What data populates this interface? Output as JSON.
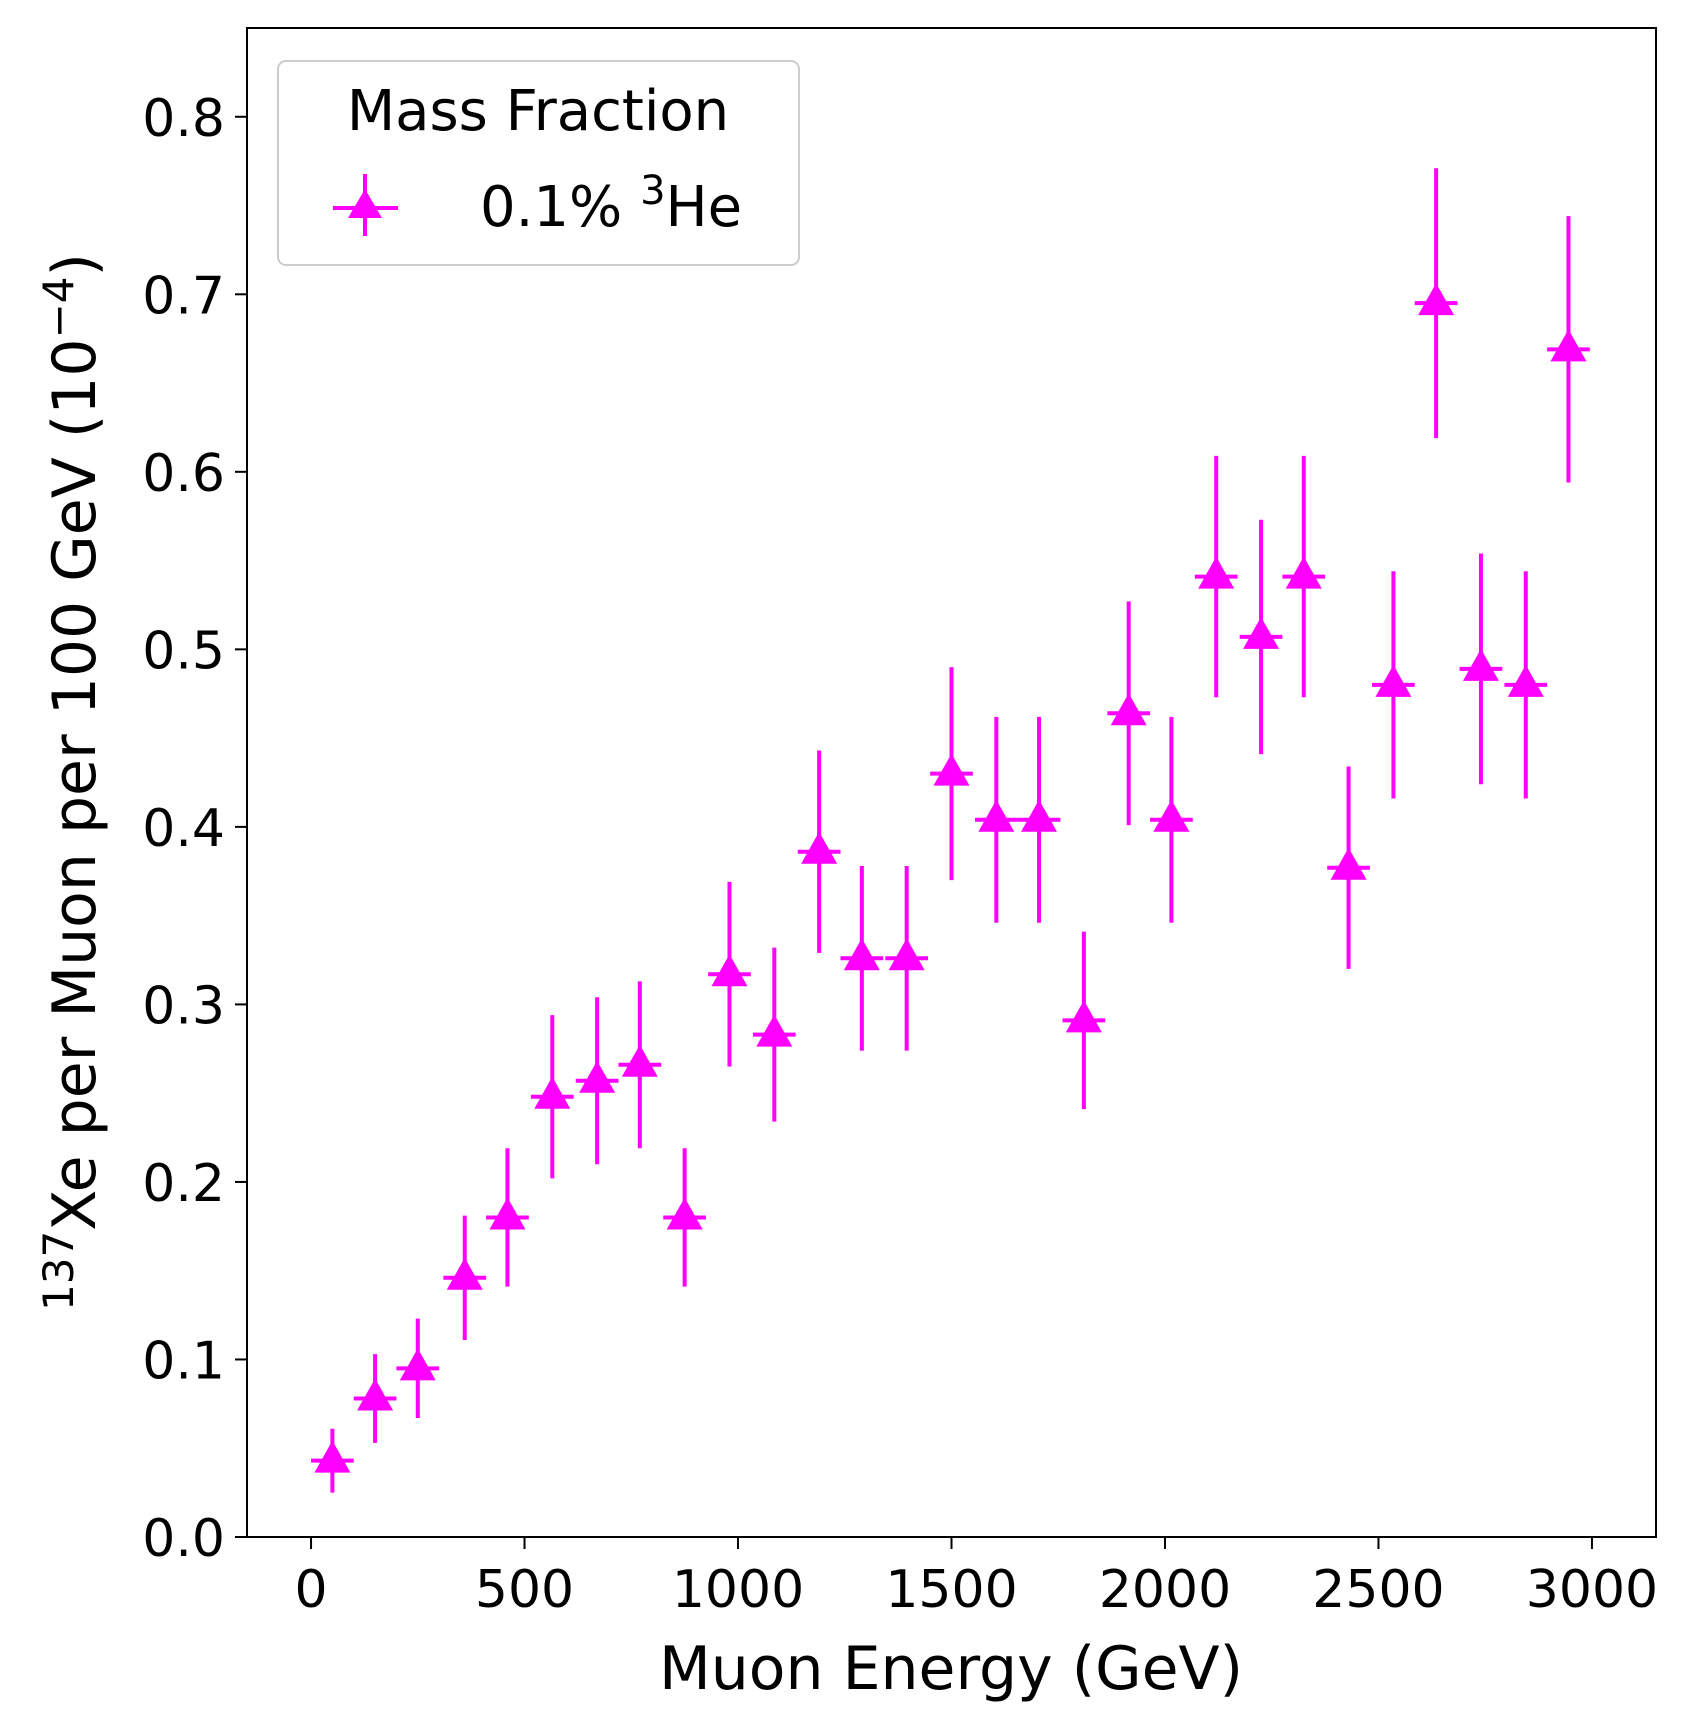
{
  "chart_data": {
    "type": "scatter",
    "title": "",
    "xlabel": "Muon Energy (GeV)",
    "ylabel": {
      "isotope_mass": "137",
      "text": "Xe per Muon per 100 GeV (10",
      "exponent": "−4",
      "close": ")"
    },
    "xlim": [
      -150,
      3150
    ],
    "ylim": [
      0.0,
      0.85
    ],
    "xticks": [
      0,
      500,
      1000,
      1500,
      2000,
      2500,
      3000
    ],
    "xtick_labels": [
      "0",
      "500",
      "1000",
      "1500",
      "2000",
      "2500",
      "3000"
    ],
    "yticks": [
      0.0,
      0.1,
      0.2,
      0.3,
      0.4,
      0.5,
      0.6,
      0.7,
      0.8
    ],
    "ytick_labels": [
      "0.0",
      "0.1",
      "0.2",
      "0.3",
      "0.4",
      "0.5",
      "0.6",
      "0.7",
      "0.8"
    ],
    "grid": false,
    "legend": {
      "title": "Mass Fraction",
      "placement": "top-left",
      "entries": [
        {
          "label_main": "0.1% ",
          "label_sup": "3",
          "label_tail": "He"
        }
      ]
    },
    "series": [
      {
        "name": "0.1% 3He",
        "color": "#ff00ff",
        "marker": "triangle-up",
        "x_half_width": 50,
        "x": [
          50,
          150,
          250,
          360,
          460,
          565,
          670,
          770,
          875,
          980,
          1085,
          1190,
          1290,
          1395,
          1500,
          1605,
          1705,
          1810,
          1915,
          2015,
          2120,
          2225,
          2325,
          2430,
          2535,
          2635,
          2740,
          2845,
          2945
        ],
        "y": [
          0.043,
          0.078,
          0.095,
          0.146,
          0.18,
          0.248,
          0.257,
          0.266,
          0.18,
          0.317,
          0.283,
          0.386,
          0.326,
          0.326,
          0.43,
          0.404,
          0.404,
          0.291,
          0.464,
          0.404,
          0.541,
          0.507,
          0.541,
          0.377,
          0.48,
          0.695,
          0.489,
          0.48,
          0.669
        ],
        "yerr": [
          0.018,
          0.025,
          0.028,
          0.035,
          0.039,
          0.046,
          0.047,
          0.047,
          0.039,
          0.052,
          0.049,
          0.057,
          0.052,
          0.052,
          0.06,
          0.058,
          0.058,
          0.05,
          0.063,
          0.058,
          0.068,
          0.066,
          0.068,
          0.057,
          0.064,
          0.076,
          0.065,
          0.064,
          0.075
        ]
      }
    ]
  }
}
